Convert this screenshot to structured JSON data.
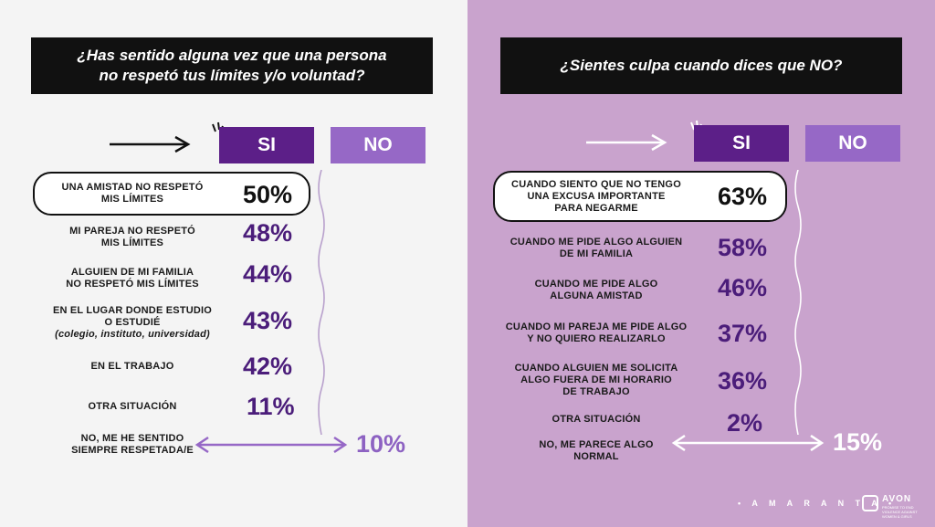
{
  "chart_data": [
    {
      "type": "table",
      "title": "¿Has sentido alguna vez que una persona no respetó tus límites y/o voluntad?",
      "columns": [
        "SI",
        "NO"
      ],
      "rows": [
        {
          "label": "UNA AMISTAD NO RESPETÓ MIS LÍMITES",
          "value": "50%",
          "highlighted": true
        },
        {
          "label": "MI PAREJA NO RESPETÓ MIS LÍMITES",
          "value": "48%"
        },
        {
          "label": "ALGUIEN DE MI FAMILIA NO RESPETÓ MIS LÍMITES",
          "value": "44%"
        },
        {
          "label": "EN EL LUGAR DONDE ESTUDIO O ESTUDIÉ",
          "sublabel": "(colegio, instituto, universidad)",
          "value": "43%"
        },
        {
          "label": "EN EL TRABAJO",
          "value": "42%"
        },
        {
          "label": "OTRA SITUACIÓN",
          "value": "11%"
        }
      ],
      "no_row": {
        "label": "NO, ME HE SENTIDO SIEMPRE RESPETADA/E",
        "value": "10%"
      }
    },
    {
      "type": "table",
      "title": "¿Sientes culpa cuando dices que NO?",
      "columns": [
        "SI",
        "NO"
      ],
      "rows": [
        {
          "label": "CUANDO SIENTO QUE NO TENGO UNA EXCUSA IMPORTANTE PARA NEGARME",
          "value": "63%",
          "highlighted": true
        },
        {
          "label": "CUANDO ME PIDE ALGO ALGUIEN DE MI FAMILIA",
          "value": "58%"
        },
        {
          "label": "CUANDO ME PIDE ALGO ALGUNA AMISTAD",
          "value": "46%"
        },
        {
          "label": "CUANDO MI PAREJA ME PIDE ALGO Y NO QUIERO REALIZARLO",
          "value": "37%"
        },
        {
          "label": "CUANDO ALGUIEN ME SOLICITA ALGO FUERA DE MI HORARIO DE TRABAJO",
          "value": "36%"
        },
        {
          "label": "OTRA SITUACIÓN",
          "value": "2%"
        }
      ],
      "no_row": {
        "label": "NO, ME PARECE ALGO NORMAL",
        "value": "15%"
      }
    }
  ],
  "left": {
    "title_line1": "¿Has sentido alguna vez que una persona",
    "title_line2": "no respetó tus límites y/o voluntad?",
    "si": "SI",
    "no": "NO",
    "rows": [
      {
        "line1": "UNA AMISTAD NO RESPETÓ",
        "line2": "MIS LÍMITES",
        "pct": "50%"
      },
      {
        "line1": "MI PAREJA NO RESPETÓ",
        "line2": "MIS LÍMITES",
        "pct": "48%"
      },
      {
        "line1": "ALGUIEN DE MI FAMILIA",
        "line2": "NO RESPETÓ MIS LÍMITES",
        "pct": "44%"
      },
      {
        "line1": "EN EL LUGAR DONDE ESTUDIO",
        "line2": "O ESTUDIÉ",
        "line3": "(colegio, instituto, universidad)",
        "pct": "43%"
      },
      {
        "line1": "EN EL TRABAJO",
        "pct": "42%"
      },
      {
        "line1": "OTRA SITUACIÓN",
        "pct": "11%"
      }
    ],
    "no_row": {
      "line1": "NO, ME HE SENTIDO",
      "line2": "SIEMPRE RESPETADA/E",
      "pct": "10%"
    }
  },
  "right": {
    "title": "¿Sientes culpa cuando dices que NO?",
    "si": "SI",
    "no": "NO",
    "rows": [
      {
        "line1": "CUANDO SIENTO QUE NO TENGO",
        "line2": "UNA EXCUSA IMPORTANTE",
        "line3": "PARA NEGARME",
        "pct": "63%"
      },
      {
        "line1": "CUANDO ME PIDE ALGO ALGUIEN",
        "line2": "DE MI FAMILIA",
        "pct": "58%"
      },
      {
        "line1": "CUANDO ME PIDE ALGO",
        "line2": "ALGUNA AMISTAD",
        "pct": "46%"
      },
      {
        "line1": "CUANDO MI PAREJA ME PIDE ALGO",
        "line2": "Y NO QUIERO REALIZARLO",
        "pct": "37%"
      },
      {
        "line1": "CUANDO ALGUIEN ME SOLICITA",
        "line2": "ALGO FUERA DE MI HORARIO",
        "line3": "DE TRABAJO",
        "pct": "36%"
      },
      {
        "line1": "OTRA SITUACIÓN",
        "pct": "2%"
      }
    ],
    "no_row": {
      "line1": "NO, ME PARECE ALGO",
      "line2": "NORMAL",
      "pct": "15%"
    }
  },
  "footer": {
    "brand": "• A M A R A N T A •",
    "avon": "AVON",
    "avon_sub": "PROMISE TO END VIOLENCE AGAINST WOMEN & GIRLS"
  },
  "colors": {
    "dark_purple": "#5c1f88",
    "light_purple": "#9668c6",
    "right_bg": "#c9a3cd",
    "left_bg": "#f4f4f4"
  }
}
